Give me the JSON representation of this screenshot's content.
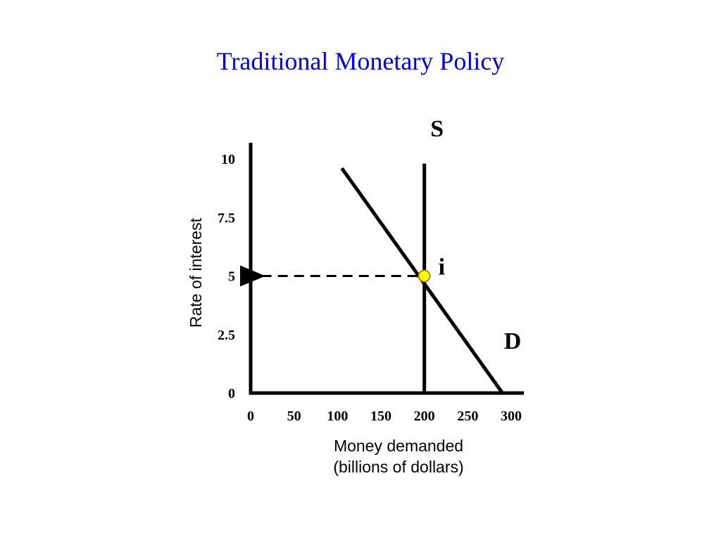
{
  "title": "Traditional Monetary Policy",
  "colors": {
    "title": "#0000EE",
    "axes": "#000000",
    "curves": "#000000",
    "equilibrium_fill": "#FFFF00",
    "equilibrium_stroke": "#B8860B"
  },
  "chart_data": {
    "type": "line",
    "title": "Traditional Monetary Policy",
    "xlabel_lines": [
      "Money demanded",
      "(billions of dollars)"
    ],
    "ylabel": "Rate of interest",
    "x_ticks": [
      0,
      50,
      100,
      150,
      200,
      250,
      300
    ],
    "x_tick_labels": [
      "0",
      "50",
      "100",
      "150",
      "200",
      "250",
      "300"
    ],
    "y_ticks": [
      0,
      2.5,
      5,
      7.5,
      10
    ],
    "y_tick_labels": [
      "0",
      "2.5",
      "5",
      "7.5",
      "10"
    ],
    "xlim": [
      0,
      300
    ],
    "ylim": [
      0,
      10
    ],
    "grid": false,
    "series": [
      {
        "name": "S",
        "x": [
          200,
          200
        ],
        "y": [
          0,
          9.8
        ]
      },
      {
        "name": "D",
        "x": [
          105,
          290
        ],
        "y": [
          9.6,
          0
        ]
      }
    ],
    "equilibrium": {
      "label": "i",
      "x": 200,
      "y": 5
    },
    "guide_line": {
      "style": "dashed",
      "from": [
        200,
        5
      ],
      "to": [
        0,
        5
      ],
      "arrow": "to-y-axis"
    }
  }
}
